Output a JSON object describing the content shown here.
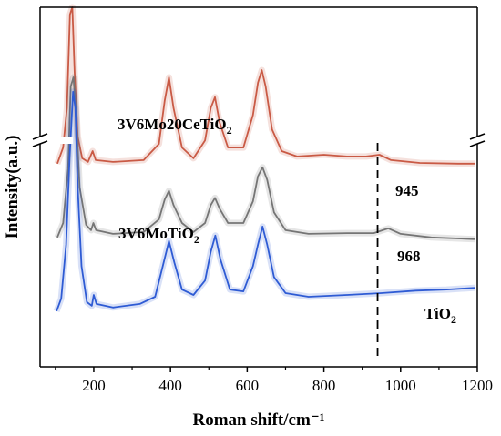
{
  "chart_data": {
    "type": "line",
    "xlabel": "Roman shift/cm⁻¹",
    "ylabel": "Intensity(a.u.)",
    "xlim": [
      60,
      1200
    ],
    "xticks": [
      200,
      400,
      600,
      800,
      1000,
      1200
    ],
    "xtick_labels": [
      "200",
      "400",
      "600",
      "800",
      "1000",
      "1200"
    ],
    "y_axis_break": true,
    "grid": false,
    "legend": "none",
    "series": [
      {
        "name": "3V6Mo20CeTiO2",
        "label_main": "3V6Mo20CeTiO",
        "label_sub": "2",
        "color": "#c95a45",
        "baseline": 0.565,
        "points": [
          [
            105,
            0.565
          ],
          [
            120,
            0.61
          ],
          [
            130,
            0.72
          ],
          [
            138,
            0.98
          ],
          [
            144,
            1.0
          ],
          [
            150,
            0.82
          ],
          [
            158,
            0.64
          ],
          [
            170,
            0.58
          ],
          [
            185,
            0.57
          ],
          [
            197,
            0.6
          ],
          [
            205,
            0.575
          ],
          [
            250,
            0.57
          ],
          [
            330,
            0.575
          ],
          [
            370,
            0.62
          ],
          [
            385,
            0.74
          ],
          [
            396,
            0.805
          ],
          [
            408,
            0.72
          ],
          [
            430,
            0.61
          ],
          [
            460,
            0.58
          ],
          [
            490,
            0.63
          ],
          [
            505,
            0.72
          ],
          [
            516,
            0.75
          ],
          [
            528,
            0.68
          ],
          [
            550,
            0.61
          ],
          [
            590,
            0.61
          ],
          [
            615,
            0.7
          ],
          [
            628,
            0.79
          ],
          [
            638,
            0.825
          ],
          [
            648,
            0.78
          ],
          [
            665,
            0.66
          ],
          [
            690,
            0.6
          ],
          [
            730,
            0.585
          ],
          [
            800,
            0.59
          ],
          [
            860,
            0.585
          ],
          [
            910,
            0.585
          ],
          [
            945,
            0.59
          ],
          [
            975,
            0.575
          ],
          [
            1050,
            0.567
          ],
          [
            1150,
            0.565
          ],
          [
            1195,
            0.565
          ]
        ],
        "annotation": "945"
      },
      {
        "name": "3V6MoTiO2",
        "label_main": "3V6MoTiO",
        "label_sub": "2",
        "color": "#757575",
        "baseline": 0.36,
        "points": [
          [
            105,
            0.36
          ],
          [
            120,
            0.4
          ],
          [
            133,
            0.55
          ],
          [
            140,
            0.78
          ],
          [
            147,
            0.805
          ],
          [
            153,
            0.72
          ],
          [
            163,
            0.5
          ],
          [
            180,
            0.395
          ],
          [
            193,
            0.38
          ],
          [
            199,
            0.4
          ],
          [
            206,
            0.38
          ],
          [
            250,
            0.37
          ],
          [
            330,
            0.375
          ],
          [
            370,
            0.41
          ],
          [
            385,
            0.465
          ],
          [
            396,
            0.49
          ],
          [
            408,
            0.45
          ],
          [
            430,
            0.4
          ],
          [
            460,
            0.375
          ],
          [
            490,
            0.4
          ],
          [
            505,
            0.45
          ],
          [
            516,
            0.47
          ],
          [
            528,
            0.44
          ],
          [
            550,
            0.4
          ],
          [
            590,
            0.4
          ],
          [
            615,
            0.46
          ],
          [
            628,
            0.53
          ],
          [
            640,
            0.555
          ],
          [
            652,
            0.52
          ],
          [
            670,
            0.43
          ],
          [
            700,
            0.38
          ],
          [
            760,
            0.37
          ],
          [
            860,
            0.372
          ],
          [
            930,
            0.372
          ],
          [
            968,
            0.385
          ],
          [
            1000,
            0.37
          ],
          [
            1080,
            0.36
          ],
          [
            1195,
            0.355
          ]
        ],
        "annotation": "968"
      },
      {
        "name": "TiO2",
        "label_main": "TiO",
        "label_sub": "2",
        "color": "#2e5bd4",
        "baseline": 0.17,
        "points": [
          [
            103,
            0.155
          ],
          [
            115,
            0.19
          ],
          [
            128,
            0.34
          ],
          [
            137,
            0.58
          ],
          [
            146,
            0.765
          ],
          [
            152,
            0.72
          ],
          [
            158,
            0.5
          ],
          [
            168,
            0.28
          ],
          [
            182,
            0.18
          ],
          [
            195,
            0.17
          ],
          [
            200,
            0.2
          ],
          [
            207,
            0.175
          ],
          [
            250,
            0.165
          ],
          [
            320,
            0.175
          ],
          [
            360,
            0.195
          ],
          [
            380,
            0.28
          ],
          [
            396,
            0.35
          ],
          [
            410,
            0.29
          ],
          [
            430,
            0.215
          ],
          [
            460,
            0.2
          ],
          [
            490,
            0.24
          ],
          [
            505,
            0.32
          ],
          [
            517,
            0.365
          ],
          [
            530,
            0.3
          ],
          [
            555,
            0.215
          ],
          [
            590,
            0.21
          ],
          [
            615,
            0.28
          ],
          [
            628,
            0.34
          ],
          [
            640,
            0.39
          ],
          [
            652,
            0.34
          ],
          [
            670,
            0.25
          ],
          [
            700,
            0.205
          ],
          [
            760,
            0.195
          ],
          [
            860,
            0.2
          ],
          [
            950,
            0.205
          ],
          [
            1040,
            0.212
          ],
          [
            1120,
            0.215
          ],
          [
            1195,
            0.22
          ]
        ],
        "annotation": ""
      }
    ],
    "reference_line_x": 940
  }
}
